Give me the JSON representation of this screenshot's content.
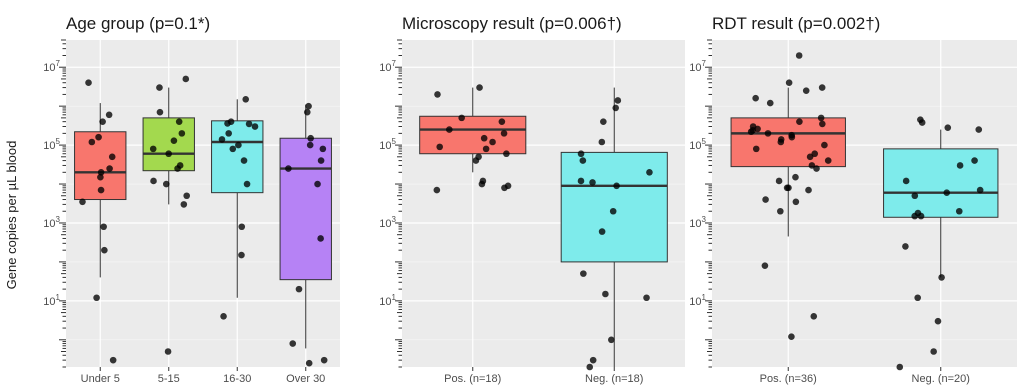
{
  "ylabel": "Gene copies per µL blood",
  "chart_data": [
    {
      "type": "boxplot",
      "title": "Age group (p=0.1*)",
      "ylabel": "Gene copies per µL blood",
      "yscale": "log10",
      "ylim": [
        0.2,
        50000000
      ],
      "yticks": [
        10,
        1000,
        100000,
        10000000
      ],
      "categories": [
        "Under 5",
        "5-15",
        "16-30",
        "Over 30"
      ],
      "colors": [
        "#F8766D",
        "#A3D94E",
        "#7EEBEB",
        "#B682F5"
      ],
      "boxes": [
        {
          "q1": 4000,
          "median": 20000,
          "q3": 220000,
          "whisker_low": 40,
          "whisker_high": 1200000
        },
        {
          "q1": 22000,
          "median": 60000,
          "q3": 500000,
          "whisker_low": 3000,
          "whisker_high": 3000000
        },
        {
          "q1": 6000,
          "median": 120000,
          "q3": 420000,
          "whisker_low": 12,
          "whisker_high": 1500000
        },
        {
          "q1": 35,
          "median": 25000,
          "q3": 150000,
          "whisker_low": 0.6,
          "whisker_high": 1100000
        }
      ],
      "points": [
        [
          4000000,
          600000,
          400000,
          160000,
          120000,
          50000,
          25000,
          15000,
          20000,
          7000,
          3500,
          800,
          200,
          12,
          0.3
        ],
        [
          5000000,
          3000000,
          700000,
          400000,
          200000,
          130000,
          80000,
          60000,
          30000,
          25000,
          12000,
          10000,
          5000,
          3000,
          0.5
        ],
        [
          1500000,
          400000,
          360000,
          350000,
          300000,
          200000,
          140000,
          100000,
          80000,
          40000,
          10000,
          800,
          150,
          4
        ],
        [
          1000000,
          700000,
          150000,
          100000,
          80000,
          40000,
          25000,
          10000,
          400,
          20,
          0.8,
          0.3,
          0.25
        ]
      ]
    },
    {
      "type": "boxplot",
      "title": "Microscopy result (p=0.006†)",
      "yscale": "log10",
      "ylim": [
        0.2,
        50000000
      ],
      "yticks": [
        10,
        1000,
        100000,
        10000000
      ],
      "categories": [
        "Pos. (n=18)",
        "Neg. (n=18)"
      ],
      "colors": [
        "#F8766D",
        "#7EEBEB"
      ],
      "boxes": [
        {
          "q1": 60000,
          "median": 250000,
          "q3": 550000,
          "whisker_low": 20000,
          "whisker_high": 3000000
        },
        {
          "q1": 100,
          "median": 9000,
          "q3": 65000,
          "whisker_low": 0.2,
          "whisker_high": 3000000
        }
      ],
      "points": [
        [
          3000000,
          2000000,
          500000,
          400000,
          250000,
          200000,
          150000,
          120000,
          90000,
          80000,
          60000,
          50000,
          40000,
          12000,
          10000,
          9000,
          8000,
          7000
        ],
        [
          1400000,
          900000,
          400000,
          120000,
          60000,
          40000,
          20000,
          12000,
          11000,
          9000,
          2000,
          600,
          50,
          15,
          12,
          1,
          0.3,
          0.2
        ]
      ]
    },
    {
      "type": "boxplot",
      "title": "RDT result (p=0.002†)",
      "yscale": "log10",
      "ylim": [
        0.2,
        50000000
      ],
      "yticks": [
        10,
        1000,
        100000,
        10000000
      ],
      "categories": [
        "Pos. (n=36)",
        "Neg. (n=20)"
      ],
      "colors": [
        "#F8766D",
        "#7EEBEB"
      ],
      "boxes": [
        {
          "q1": 28000,
          "median": 200000,
          "q3": 500000,
          "whisker_low": 450,
          "whisker_high": 3000000
        },
        {
          "q1": 1400,
          "median": 6000,
          "q3": 80000,
          "whisker_low": 40,
          "whisker_high": 250000
        }
      ],
      "points": [
        [
          20000000,
          4000000,
          3000000,
          2500000,
          1600000,
          1200000,
          500000,
          400000,
          350000,
          300000,
          260000,
          240000,
          220000,
          200000,
          180000,
          160000,
          140000,
          120000,
          100000,
          80000,
          60000,
          50000,
          40000,
          30000,
          25000,
          15000,
          12000,
          8000,
          8000,
          7000,
          4000,
          3500,
          2000,
          80,
          4,
          1.2
        ],
        [
          450000,
          380000,
          280000,
          250000,
          40000,
          30000,
          12000,
          7000,
          6000,
          5000,
          2000,
          1800,
          1500,
          1500,
          250,
          40,
          12,
          3,
          0.5,
          0.2
        ]
      ]
    }
  ]
}
